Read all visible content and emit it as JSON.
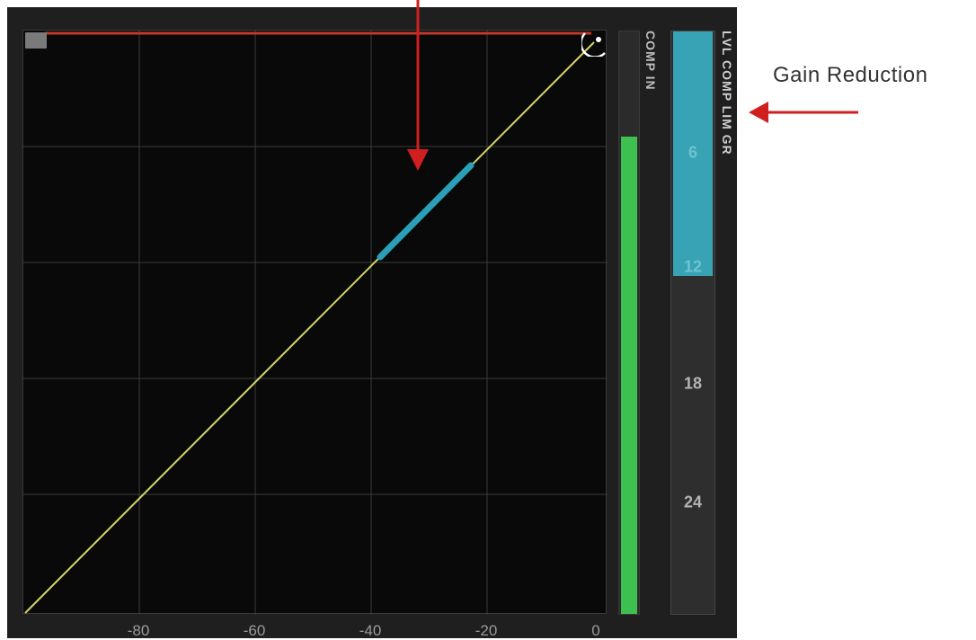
{
  "compressor": {
    "x_axis_ticks": [
      "-80",
      "-60",
      "-40",
      "-20",
      "0"
    ],
    "comp_in_label": "COMP IN",
    "comp_in_level": 0.82,
    "gr_meter_label": "LVL COMP LIM GR",
    "gr_ticks": [
      "6",
      "12",
      "18",
      "24"
    ],
    "gain_reduction_level": 0.42
  },
  "annotation": {
    "gain_reduction_text": "Gain Reduction"
  },
  "colors": {
    "curve": "#d6d46a",
    "gr_highlight": "#2aa0b8",
    "threshold_line": "#c0392b",
    "meter_green": "#3fbf4f",
    "meter_cyan": "#37a3b4",
    "annotation_arrow": "#d01f1f"
  }
}
